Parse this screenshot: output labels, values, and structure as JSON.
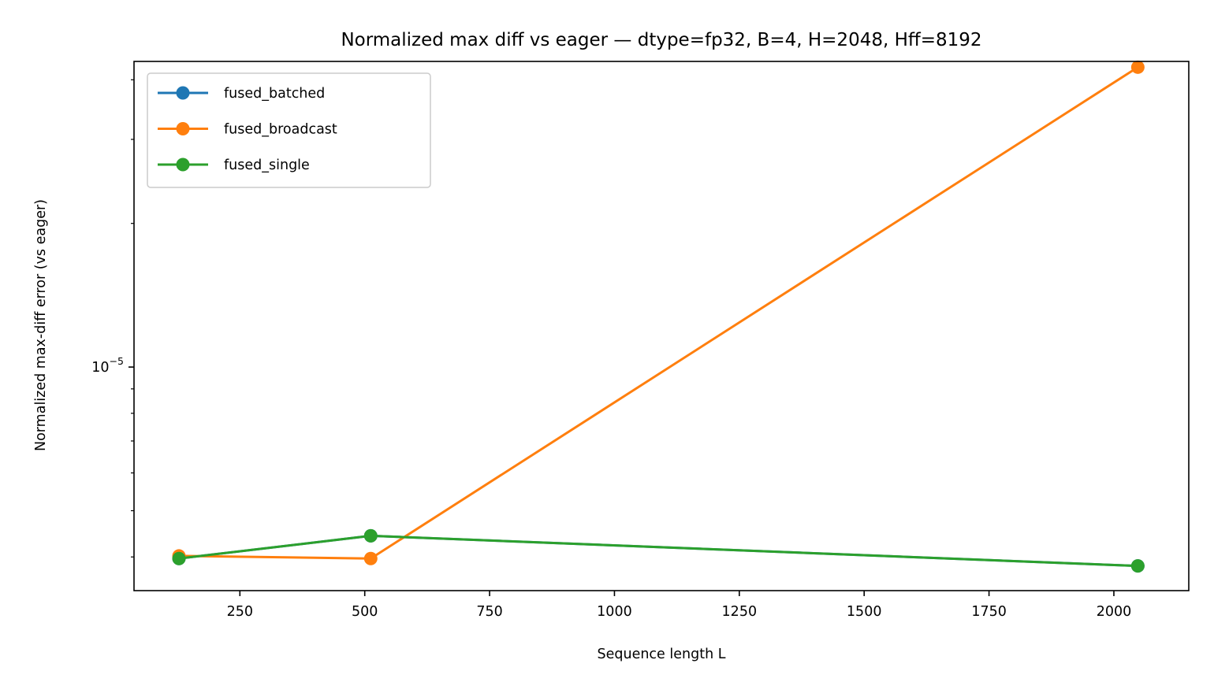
{
  "chart_data": {
    "type": "line",
    "title": "Normalized max diff vs eager — dtype=fp32, B=4, H=2048, Hff=8192",
    "xlabel": "Sequence length L",
    "ylabel": "Normalized max-diff error (vs eager)",
    "x_ticks": [
      250,
      500,
      750,
      1000,
      1250,
      1500,
      1750,
      2000
    ],
    "x_tick_labels": [
      "250",
      "500",
      "750",
      "1000",
      "1250",
      "1500",
      "1750",
      "2000"
    ],
    "xlim": [
      38,
      2150
    ],
    "y_scale": "log",
    "ylim": [
      3.4e-06,
      4.37e-05
    ],
    "y_major_ticks": [
      1e-05
    ],
    "y_major_tick_label": {
      "base": "10",
      "exponent": "−5"
    },
    "y_minor_ticks": [
      4e-06,
      5e-06,
      6e-06,
      7e-06,
      8e-06,
      9e-06,
      2e-05,
      3e-05,
      4e-05
    ],
    "grid": false,
    "legend_position": "top-left",
    "series": [
      {
        "name": "fused_batched",
        "color": "#1f77b4",
        "x": [
          128,
          512,
          2048
        ],
        "y": [
          3.97e-06,
          4.43e-06,
          3.83e-06
        ]
      },
      {
        "name": "fused_broadcast",
        "color": "#ff7f0e",
        "x": [
          128,
          512,
          2048
        ],
        "y": [
          4.02e-06,
          3.97e-06,
          4.25e-05
        ]
      },
      {
        "name": "fused_single",
        "color": "#2ca02c",
        "x": [
          128,
          512,
          2048
        ],
        "y": [
          3.97e-06,
          4.43e-06,
          3.83e-06
        ]
      }
    ]
  }
}
